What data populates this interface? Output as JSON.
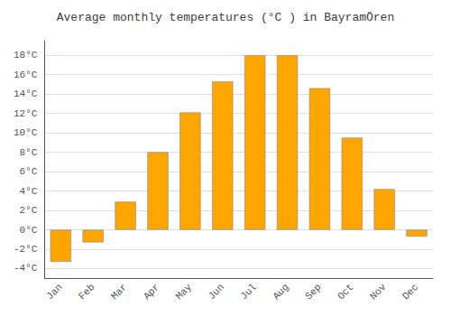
{
  "chart_data": {
    "type": "bar",
    "title": "Average monthly temperatures (°C ) in BayramÖren",
    "categories": [
      "Jan",
      "Feb",
      "Mar",
      "Apr",
      "May",
      "Jun",
      "Jul",
      "Aug",
      "Sep",
      "Oct",
      "Nov",
      "Dec"
    ],
    "values": [
      -3.3,
      -1.3,
      2.9,
      8.0,
      12.1,
      15.3,
      18.0,
      18.0,
      14.6,
      9.5,
      4.2,
      -0.7
    ],
    "color": "#FFA500",
    "ylim": [
      -5,
      19.5
    ],
    "yticks": [
      {
        "value": -4,
        "label": "-4°C"
      },
      {
        "value": -2,
        "label": "-2°C"
      },
      {
        "value": 0,
        "label": "0°C"
      },
      {
        "value": 2,
        "label": "2°C"
      },
      {
        "value": 4,
        "label": "4°C"
      },
      {
        "value": 6,
        "label": "6°C"
      },
      {
        "value": 8,
        "label": "8°C"
      },
      {
        "value": 10,
        "label": "10°C"
      },
      {
        "value": 12,
        "label": "12°C"
      },
      {
        "value": 14,
        "label": "14°C"
      },
      {
        "value": 16,
        "label": "16°C"
      },
      {
        "value": 18,
        "label": "18°C"
      }
    ],
    "grid": true
  }
}
